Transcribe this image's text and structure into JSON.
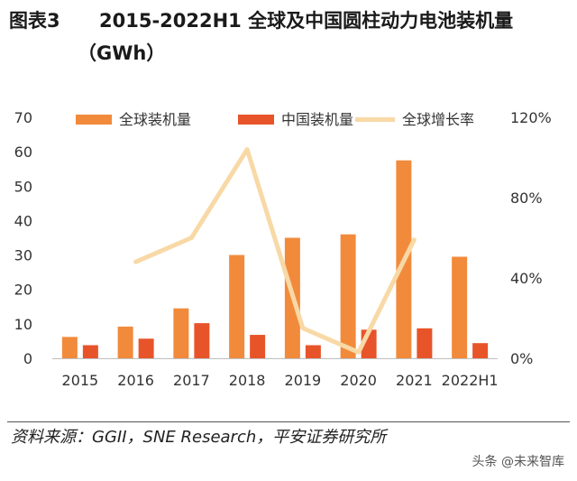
{
  "header": {
    "figure_label": "图表3",
    "title": "2015-2022H1 全球及中国圆柱动力电池装机量",
    "unit": "（GWh）"
  },
  "footer": {
    "source": "资料来源：GGII，SNE Research，平安证券研究所",
    "watermark": "头条 @未来智库"
  },
  "colors": {
    "global": "#F28A3C",
    "china": "#E8542A",
    "growth": "#F8D9A6"
  },
  "chart_data": {
    "type": "bar",
    "categories": [
      "2015",
      "2016",
      "2017",
      "2018",
      "2019",
      "2020",
      "2021",
      "2022H1"
    ],
    "series": [
      {
        "name": "全球装机量",
        "type": "bar",
        "axis": "left",
        "values": [
          6.2,
          9.2,
          14.5,
          30.0,
          35.0,
          36.0,
          57.5,
          29.5
        ]
      },
      {
        "name": "中国装机量",
        "type": "bar",
        "axis": "left",
        "values": [
          3.8,
          5.7,
          10.2,
          6.8,
          3.8,
          8.3,
          8.7,
          4.4
        ]
      },
      {
        "name": "全球增长率",
        "type": "line",
        "axis": "right",
        "values": [
          null,
          48,
          60,
          104,
          15,
          3,
          59,
          null
        ]
      }
    ],
    "y_left": {
      "min": 0,
      "max": 70,
      "ticks": [
        0,
        10,
        20,
        30,
        40,
        50,
        60,
        70
      ]
    },
    "y_right": {
      "min": 0,
      "max": 120,
      "ticks": [
        "0%",
        "40%",
        "80%",
        "120%"
      ]
    },
    "legend_position": "top",
    "grid": false
  }
}
